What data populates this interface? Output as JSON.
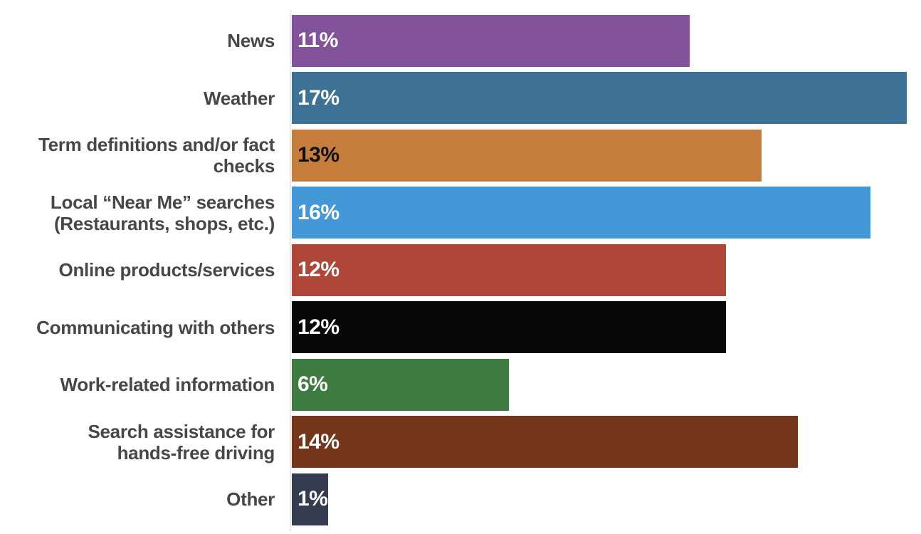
{
  "chart_data": {
    "type": "bar",
    "orientation": "horizontal",
    "title": "",
    "xlabel": "",
    "ylabel": "",
    "xlim": [
      0,
      17.4
    ],
    "grid": false,
    "legend": false,
    "categories": [
      "News",
      "Weather",
      "Term definitions and/or fact checks",
      "Local “Near Me” searches (Restaurants, shops, etc.)",
      "Online products/services",
      "Communicating with others",
      "Work-related information",
      "Search assistance for hands-free driving",
      "Other"
    ],
    "label_lines": [
      [
        "News"
      ],
      [
        "Weather"
      ],
      [
        "Term definitions and/or fact",
        "checks"
      ],
      [
        "Local “Near Me” searches",
        "(Restaurants, shops, etc.)"
      ],
      [
        "Online products/services"
      ],
      [
        "Communicating with others"
      ],
      [
        "Work-related information"
      ],
      [
        "Search assistance for",
        "hands-free driving"
      ],
      [
        "Other"
      ]
    ],
    "values": [
      11,
      17,
      13,
      16,
      12,
      12,
      6,
      14,
      1
    ],
    "value_labels": [
      "11%",
      "17%",
      "13%",
      "16%",
      "12%",
      "12%",
      "6%",
      "14%",
      "1%"
    ],
    "bar_colors": [
      "#82539B",
      "#3D7195",
      "#C77D3B",
      "#4498D8",
      "#AF4638",
      "#080808",
      "#3E7B41",
      "#74361A",
      "#353C4F"
    ],
    "value_label_colors": [
      "#FFFFFF",
      "#FFFFFF",
      "#111111",
      "#FFFFFF",
      "#FFFFFF",
      "#FFFFFF",
      "#FFFFFF",
      "#FFFFFF",
      "#FFFFFF"
    ]
  },
  "style": {
    "background": "#FFFFFF",
    "category_label_color": "#474747",
    "axis_line_color": "#ECECEC"
  }
}
